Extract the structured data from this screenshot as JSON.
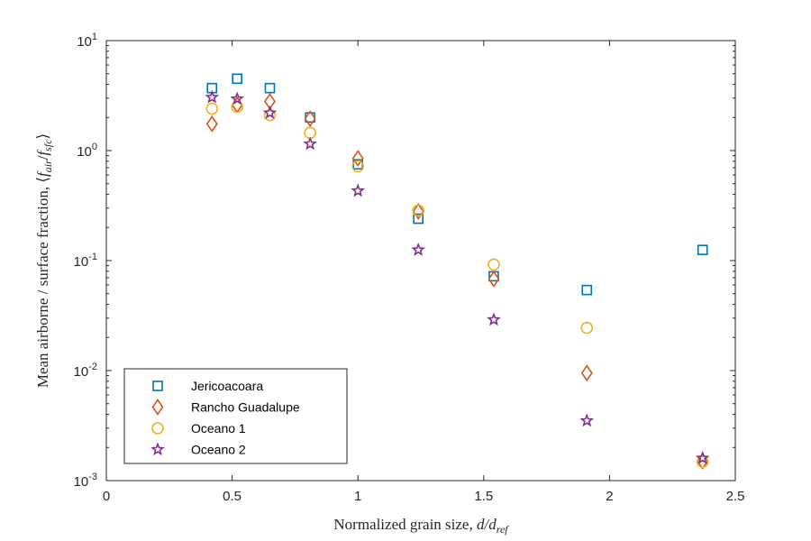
{
  "chart_data": {
    "type": "scatter",
    "xlabel": "Normalized grain size, d/d_ref",
    "xlabel_parts": {
      "text": "Normalized grain size, ",
      "var": "d/d",
      "sub": "ref"
    },
    "ylabel": "Mean airborne / surface fraction, ⟨f_air/f_sfc⟩",
    "ylabel_parts": {
      "text": "Mean airborne / surface fraction, ",
      "open": "⟨",
      "f1": "f",
      "s1": "air",
      "slash": "/",
      "f2": "f",
      "s2": "sfc",
      "close": "⟩"
    },
    "xlim": [
      0,
      2.5
    ],
    "ylim": [
      0.001,
      10
    ],
    "yscale": "log",
    "grid": false,
    "legend_position": "bottom-left",
    "x_ticks": [
      {
        "value": 0,
        "label": "0"
      },
      {
        "value": 0.5,
        "label": "0.5"
      },
      {
        "value": 1,
        "label": "1"
      },
      {
        "value": 1.5,
        "label": "1.5"
      },
      {
        "value": 2,
        "label": "2"
      },
      {
        "value": 2.5,
        "label": "2.5"
      }
    ],
    "y_ticks": [
      {
        "value": 0.001,
        "base": "10",
        "exp": "-3"
      },
      {
        "value": 0.01,
        "base": "10",
        "exp": "-2"
      },
      {
        "value": 0.1,
        "base": "10",
        "exp": "-1"
      },
      {
        "value": 1,
        "base": "10",
        "exp": "0"
      },
      {
        "value": 10,
        "base": "10",
        "exp": "1"
      }
    ],
    "series": [
      {
        "name": "Jericoacoara",
        "marker": "square",
        "color": "#0072BD",
        "points": [
          {
            "x": 0.42,
            "y": 3.7
          },
          {
            "x": 0.52,
            "y": 4.5
          },
          {
            "x": 0.65,
            "y": 3.7
          },
          {
            "x": 0.81,
            "y": 2.0
          },
          {
            "x": 1.0,
            "y": 0.75
          },
          {
            "x": 1.24,
            "y": 0.24
          },
          {
            "x": 1.54,
            "y": 0.072
          },
          {
            "x": 1.91,
            "y": 0.054
          },
          {
            "x": 2.37,
            "y": 0.125
          }
        ]
      },
      {
        "name": "Rancho Guadalupe",
        "marker": "diamond",
        "color": "#D95319",
        "points": [
          {
            "x": 0.42,
            "y": 1.75
          },
          {
            "x": 0.52,
            "y": 2.6
          },
          {
            "x": 0.65,
            "y": 2.8
          },
          {
            "x": 0.81,
            "y": 1.95
          },
          {
            "x": 1.0,
            "y": 0.85
          },
          {
            "x": 1.24,
            "y": 0.28
          },
          {
            "x": 1.54,
            "y": 0.068
          },
          {
            "x": 1.91,
            "y": 0.0095
          },
          {
            "x": 2.37,
            "y": 0.0015
          }
        ]
      },
      {
        "name": "Oceano 1",
        "marker": "circle",
        "color": "#EDB120",
        "points": [
          {
            "x": 0.42,
            "y": 2.4
          },
          {
            "x": 0.52,
            "y": 2.5
          },
          {
            "x": 0.65,
            "y": 2.1
          },
          {
            "x": 0.81,
            "y": 1.45
          },
          {
            "x": 1.0,
            "y": 0.72
          },
          {
            "x": 1.24,
            "y": 0.285
          },
          {
            "x": 1.54,
            "y": 0.092
          },
          {
            "x": 1.91,
            "y": 0.0245
          },
          {
            "x": 2.37,
            "y": 0.00148
          }
        ]
      },
      {
        "name": "Oceano 2",
        "marker": "star",
        "color": "#7E2F8E",
        "points": [
          {
            "x": 0.42,
            "y": 3.05
          },
          {
            "x": 0.52,
            "y": 2.95
          },
          {
            "x": 0.65,
            "y": 2.2
          },
          {
            "x": 0.81,
            "y": 1.15
          },
          {
            "x": 1.0,
            "y": 0.43
          },
          {
            "x": 1.24,
            "y": 0.125
          },
          {
            "x": 1.54,
            "y": 0.029
          },
          {
            "x": 1.91,
            "y": 0.0035
          },
          {
            "x": 2.37,
            "y": 0.0016
          }
        ]
      }
    ]
  }
}
